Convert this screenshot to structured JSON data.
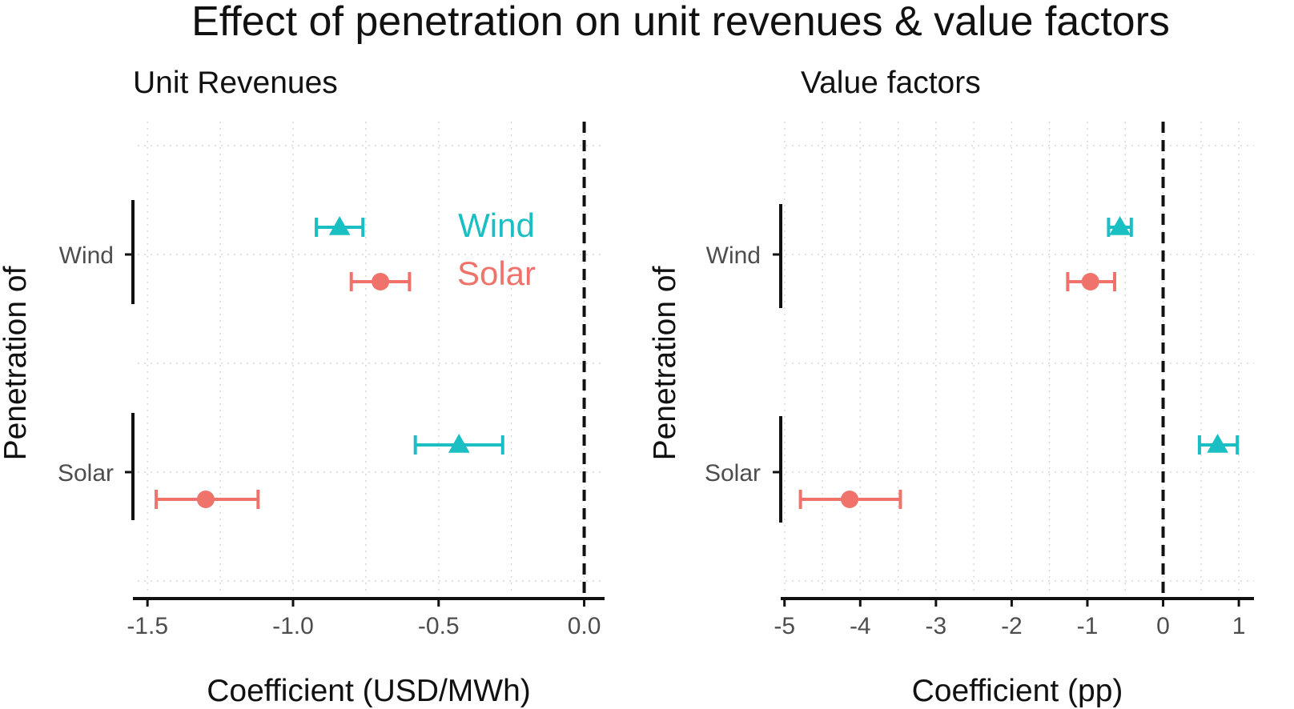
{
  "title": "Effect of penetration on unit revenues & value factors",
  "colors": {
    "wind": "#1ABFC4",
    "solar": "#F0736B"
  },
  "legend": [
    {
      "label": "Wind",
      "color": "#1ABFC4"
    },
    {
      "label": "Solar",
      "color": "#F0736B"
    }
  ],
  "chart_data": [
    {
      "type": "scatter",
      "subtype": "coefficient-plot-with-error-bars",
      "title": "Unit Revenues",
      "xlabel": "Coefficient (USD/MWh)",
      "ylabel": "Penetration of",
      "categories": [
        "Wind",
        "Solar"
      ],
      "xlim": [
        -1.55,
        0.07
      ],
      "xticks": [
        -1.5,
        -1.0,
        -0.5,
        0.0
      ],
      "xtick_labels": [
        "-1.5",
        "-1.0",
        "-0.5",
        "0.0"
      ],
      "reference_line": 0,
      "grid": true,
      "legend_position": "inside top-right",
      "series": [
        {
          "name": "Wind",
          "marker": "triangle",
          "points": [
            {
              "category": "Wind",
              "estimate": -0.84,
              "low": -0.92,
              "high": -0.76
            },
            {
              "category": "Solar",
              "estimate": -0.43,
              "low": -0.58,
              "high": -0.28
            }
          ]
        },
        {
          "name": "Solar",
          "marker": "circle",
          "points": [
            {
              "category": "Wind",
              "estimate": -0.7,
              "low": -0.8,
              "high": -0.6
            },
            {
              "category": "Solar",
              "estimate": -1.3,
              "low": -1.47,
              "high": -1.12
            }
          ]
        }
      ]
    },
    {
      "type": "scatter",
      "subtype": "coefficient-plot-with-error-bars",
      "title": "Value factors",
      "xlabel": "Coefficient (pp)",
      "ylabel": "Penetration of",
      "categories": [
        "Wind",
        "Solar"
      ],
      "xlim": [
        -5.05,
        1.2
      ],
      "xticks": [
        -5,
        -4,
        -3,
        -2,
        -1,
        0,
        1
      ],
      "xtick_labels": [
        "-5",
        "-4",
        "-3",
        "-2",
        "-1",
        "0",
        "1"
      ],
      "reference_line": 0,
      "grid": true,
      "series": [
        {
          "name": "Wind",
          "marker": "triangle",
          "points": [
            {
              "category": "Wind",
              "estimate": -0.57,
              "low": -0.72,
              "high": -0.42
            },
            {
              "category": "Solar",
              "estimate": 0.72,
              "low": 0.48,
              "high": 0.98
            }
          ]
        },
        {
          "name": "Solar",
          "marker": "circle",
          "points": [
            {
              "category": "Wind",
              "estimate": -0.96,
              "low": -1.26,
              "high": -0.64
            },
            {
              "category": "Solar",
              "estimate": -4.14,
              "low": -4.79,
              "high": -3.47
            }
          ]
        }
      ]
    }
  ]
}
